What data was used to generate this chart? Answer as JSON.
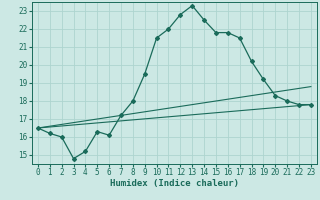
{
  "xlabel": "Humidex (Indice chaleur)",
  "bg_color": "#cce8e4",
  "grid_color": "#aed4cf",
  "line_color": "#1a6b5a",
  "xlim": [
    -0.5,
    23.5
  ],
  "ylim": [
    14.5,
    23.5
  ],
  "xticks": [
    0,
    1,
    2,
    3,
    4,
    5,
    6,
    7,
    8,
    9,
    10,
    11,
    12,
    13,
    14,
    15,
    16,
    17,
    18,
    19,
    20,
    21,
    22,
    23
  ],
  "yticks": [
    15,
    16,
    17,
    18,
    19,
    20,
    21,
    22,
    23
  ],
  "main_line": [
    [
      0,
      16.5
    ],
    [
      1,
      16.2
    ],
    [
      2,
      16.0
    ],
    [
      3,
      14.8
    ],
    [
      4,
      15.2
    ],
    [
      5,
      16.3
    ],
    [
      6,
      16.1
    ],
    [
      7,
      17.2
    ],
    [
      8,
      18.0
    ],
    [
      9,
      19.5
    ],
    [
      10,
      21.5
    ],
    [
      11,
      22.0
    ],
    [
      12,
      22.8
    ],
    [
      13,
      23.3
    ],
    [
      14,
      22.5
    ],
    [
      15,
      21.8
    ],
    [
      16,
      21.8
    ],
    [
      17,
      21.5
    ],
    [
      18,
      20.2
    ],
    [
      19,
      19.2
    ],
    [
      20,
      18.3
    ],
    [
      21,
      18.0
    ],
    [
      22,
      17.8
    ],
    [
      23,
      17.8
    ]
  ],
  "line2": [
    [
      0,
      16.5
    ],
    [
      23,
      18.8
    ]
  ],
  "line3": [
    [
      0,
      16.5
    ],
    [
      23,
      17.8
    ]
  ]
}
